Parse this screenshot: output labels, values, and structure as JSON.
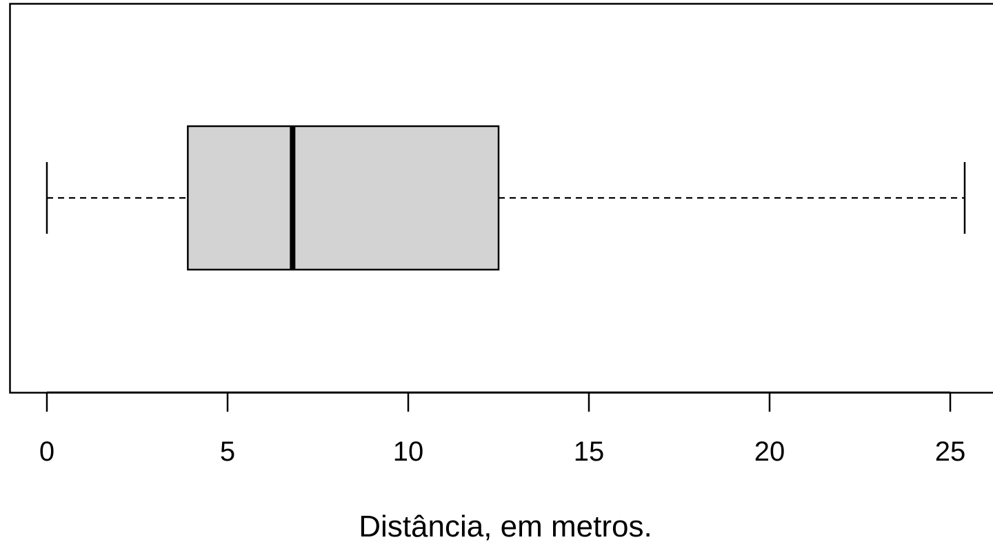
{
  "chart_data": {
    "type": "boxplot",
    "orientation": "horizontal",
    "xlabel": "Distância, em metros.",
    "xlim": [
      0,
      25.5
    ],
    "xticks": [
      0,
      5,
      10,
      15,
      20,
      25
    ],
    "xtick_labels": [
      "0",
      "5",
      "10",
      "15",
      "20",
      "25"
    ],
    "boxes": [
      {
        "min": 0,
        "q1": 3.9,
        "median": 6.8,
        "q3": 12.5,
        "max": 25.4
      }
    ],
    "grid": false,
    "legend": "none",
    "colors": {
      "box_fill": "#d3d3d3",
      "stroke": "#000000",
      "background": "#ffffff"
    }
  }
}
